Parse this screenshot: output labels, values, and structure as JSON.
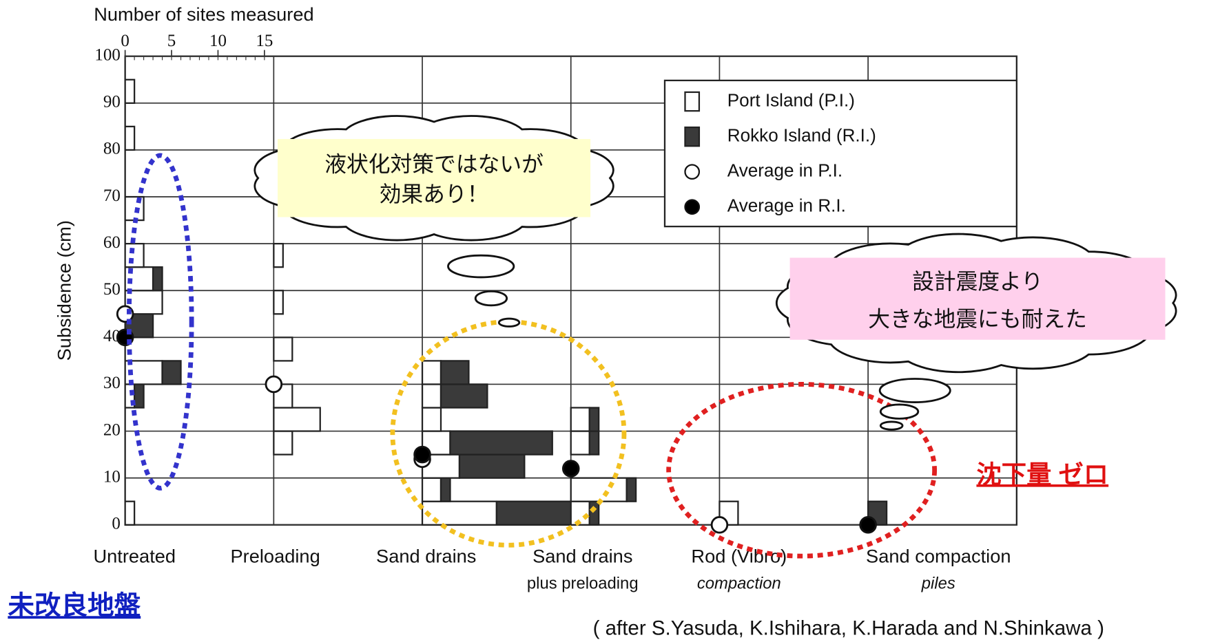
{
  "chart_data": {
    "type": "histogram-panel",
    "title": "Number of sites measured",
    "y_label": "Subsidence (cm)",
    "categories": [
      [
        "Untreated"
      ],
      [
        "Preloading"
      ],
      [
        "Sand drains"
      ],
      [
        "Sand drains",
        "plus preloading"
      ],
      [
        "Rod (Vibro)",
        "compaction"
      ],
      [
        "Sand compaction",
        "piles"
      ]
    ],
    "bins": [
      0,
      5,
      10,
      15,
      20,
      25,
      30,
      35,
      40,
      45,
      50,
      55,
      60,
      65,
      70,
      75,
      80,
      85,
      90,
      95,
      100
    ],
    "ylim": [
      0,
      100
    ],
    "yticks": [
      0,
      10,
      20,
      30,
      40,
      50,
      60,
      70,
      80,
      90,
      100
    ],
    "xlim": [
      0,
      16
    ],
    "xticks": [
      0,
      5,
      10,
      15
    ],
    "grid": true,
    "series": [
      {
        "name": "Port Island (P.I.)",
        "marker": "box",
        "color": "#ffffff",
        "values": [
          [
            1,
            0,
            0,
            0,
            0,
            1,
            4,
            0,
            0,
            4,
            3,
            2,
            0,
            2,
            0,
            0,
            1,
            0,
            1,
            0
          ],
          [
            0,
            0,
            0,
            2,
            5,
            2,
            0,
            2,
            0,
            1,
            0,
            1,
            0,
            0,
            0,
            0,
            0,
            0,
            0,
            0
          ],
          [
            8,
            2,
            4,
            3,
            2,
            2,
            2,
            0,
            0,
            0,
            0,
            0,
            0,
            0,
            0,
            0,
            0,
            0,
            0,
            0
          ],
          [
            2,
            6,
            0,
            2,
            2,
            0,
            0,
            0,
            0,
            0,
            0,
            0,
            0,
            0,
            0,
            0,
            0,
            0,
            0,
            0
          ],
          [
            2,
            0,
            0,
            0,
            0,
            0,
            0,
            0,
            0,
            0,
            0,
            0,
            0,
            0,
            0,
            0,
            0,
            0,
            0,
            0
          ],
          [
            0,
            0,
            0,
            0,
            0,
            0,
            0,
            0,
            0,
            0,
            0,
            0,
            0,
            0,
            0,
            0,
            0,
            0,
            0,
            0
          ]
        ]
      },
      {
        "name": "Rokko Island (R.I.)",
        "marker": "box",
        "color": "#3a3a3a",
        "values": [
          [
            0,
            0,
            0,
            0,
            0,
            1,
            2,
            0,
            3,
            0,
            1,
            0,
            0,
            0,
            0,
            0,
            0,
            0,
            0,
            0
          ],
          [
            0,
            0,
            0,
            0,
            0,
            0,
            0,
            0,
            0,
            0,
            0,
            0,
            0,
            0,
            0,
            0,
            0,
            0,
            0,
            0
          ],
          [
            9,
            1,
            7,
            11,
            0,
            5,
            3,
            0,
            0,
            0,
            0,
            0,
            0,
            0,
            0,
            0,
            0,
            0,
            0,
            0
          ],
          [
            1,
            1,
            0,
            1,
            1,
            0,
            0,
            0,
            0,
            0,
            0,
            0,
            0,
            0,
            0,
            0,
            0,
            0,
            0,
            0
          ],
          [
            0,
            0,
            0,
            0,
            0,
            0,
            0,
            0,
            0,
            0,
            0,
            0,
            0,
            0,
            0,
            0,
            0,
            0,
            0,
            0
          ],
          [
            2,
            0,
            0,
            0,
            0,
            0,
            0,
            0,
            0,
            0,
            0,
            0,
            0,
            0,
            0,
            0,
            0,
            0,
            0,
            0
          ]
        ]
      },
      {
        "name": "Average in P.I.",
        "marker": "circle",
        "color": "#ffffff",
        "values": [
          45,
          30,
          14,
          null,
          0,
          null
        ]
      },
      {
        "name": "Average in R.I.",
        "marker": "circle",
        "color": "#000000",
        "values": [
          40,
          null,
          15,
          12,
          null,
          0
        ]
      }
    ],
    "annotations": {
      "cloud_1_line_1": "液状化対策ではないが",
      "cloud_1_line_2": "効果あり！",
      "cloud_2_line_1": "設計震度より",
      "cloud_2_line_2": "大きな地震にも耐えた",
      "zero": "沈下量 ゼロ",
      "untreated": "未改良地盤",
      "source": "( after S.Yasuda, K.Ishihara, K.Harada and N.Shinkawa )"
    }
  }
}
